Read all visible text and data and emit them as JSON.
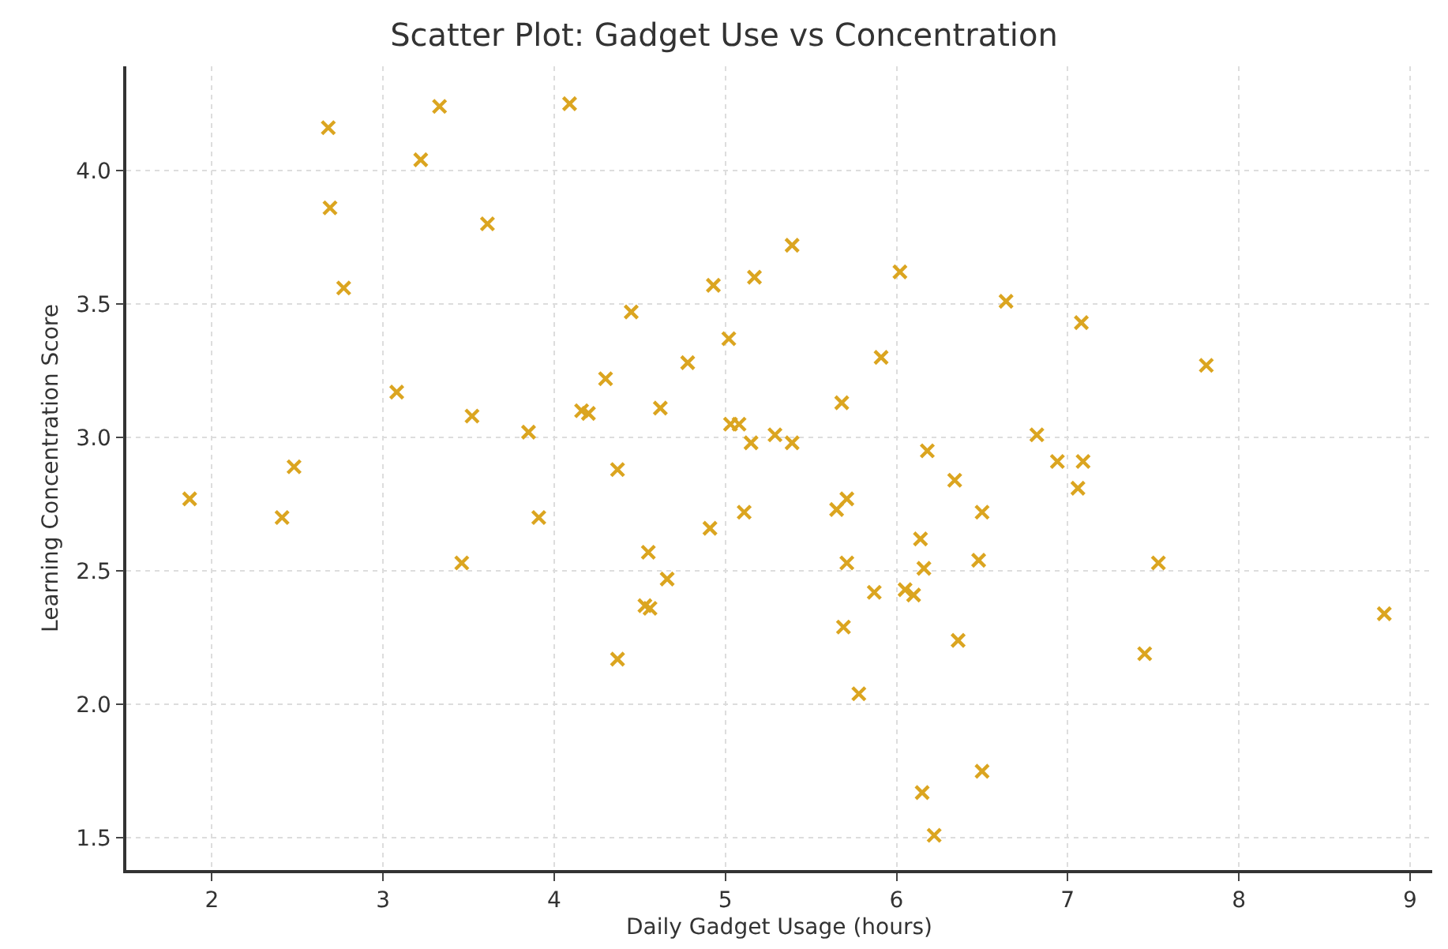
{
  "chart_data": {
    "type": "scatter",
    "title": "Scatter Plot: Gadget Use vs Concentration",
    "xlabel": "Daily Gadget Usage (hours)",
    "ylabel": "Learning Concentration Score",
    "x": [
      1.87,
      2.41,
      2.48,
      2.68,
      2.69,
      2.77,
      3.08,
      3.22,
      3.33,
      3.52,
      3.61,
      3.46,
      3.85,
      3.91,
      4.09,
      4.16,
      4.2,
      4.3,
      4.37,
      4.37,
      4.45,
      4.55,
      4.53,
      4.56,
      4.62,
      4.66,
      4.78,
      4.91,
      4.93,
      5.02,
      5.03,
      5.08,
      5.11,
      5.15,
      5.29,
      5.39,
      5.17,
      5.39,
      5.65,
      5.68,
      5.71,
      5.71,
      5.69,
      5.78,
      5.87,
      5.91,
      6.02,
      6.05,
      6.1,
      6.14,
      6.16,
      6.18,
      6.15,
      6.22,
      6.34,
      6.36,
      6.5,
      6.48,
      6.5,
      6.64,
      6.82,
      6.94,
      7.06,
      7.09,
      7.08,
      7.45,
      7.53,
      7.81,
      8.85
    ],
    "series": [
      {
        "color": "#dba520",
        "values": [
          2.77,
          2.7,
          2.89,
          4.16,
          3.86,
          3.56,
          3.17,
          4.04,
          4.24,
          3.08,
          3.8,
          2.53,
          3.02,
          2.7,
          4.25,
          3.1,
          3.09,
          3.22,
          2.88,
          2.17,
          3.47,
          2.57,
          2.37,
          2.36,
          3.11,
          2.47,
          3.28,
          2.66,
          3.57,
          3.37,
          3.05,
          3.05,
          2.72,
          2.98,
          3.01,
          2.98,
          3.6,
          3.72,
          2.73,
          3.13,
          2.77,
          2.53,
          2.29,
          2.04,
          2.42,
          3.3,
          3.62,
          2.43,
          2.41,
          2.62,
          2.51,
          2.95,
          1.67,
          1.51,
          2.84,
          2.24,
          2.72,
          2.54,
          1.75,
          3.51,
          3.01,
          2.91,
          2.81,
          2.91,
          3.43,
          2.19,
          2.53,
          3.27,
          2.34
        ]
      }
    ],
    "xlim": [
      1.5,
      9.13
    ],
    "ylim": [
      1.38,
      4.39
    ],
    "xticks": [
      2,
      3,
      4,
      5,
      6,
      7,
      8,
      9
    ],
    "yticks": [
      {
        "value": 1.5,
        "label": "1.5"
      },
      {
        "value": 2.0,
        "label": "2.0"
      },
      {
        "value": 2.5,
        "label": "2.5"
      },
      {
        "value": 3.0,
        "label": "3.0"
      },
      {
        "value": 3.5,
        "label": "3.5"
      },
      {
        "value": 4.0,
        "label": "4.0"
      }
    ],
    "grid": true,
    "marker": "cross"
  }
}
